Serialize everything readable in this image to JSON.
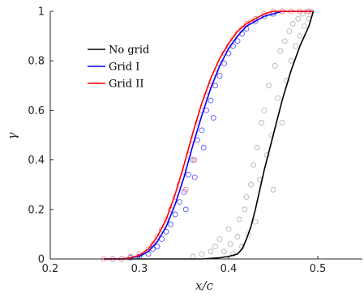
{
  "chart_data": {
    "type": "line",
    "title": "",
    "xlabel": "x/c",
    "ylabel": "γ",
    "xlim": [
      0.2,
      0.55
    ],
    "ylim": [
      0,
      1
    ],
    "xticks": [
      0.2,
      0.3,
      0.4,
      0.5
    ],
    "xtick_labels": [
      "0.2",
      "0.3",
      "0.4",
      "0.5"
    ],
    "yticks": [
      0,
      0.2,
      0.4,
      0.6,
      0.8,
      1
    ],
    "ytick_labels": [
      "0",
      "0.2",
      "0.4",
      "0.6",
      "0.8",
      "1"
    ],
    "grid": false,
    "legend": {
      "placement": "top-left",
      "entries": [
        "No grid",
        "Grid I",
        "Grid II"
      ]
    },
    "series": [
      {
        "name": "No grid",
        "color": "#000000",
        "marker_color": "#b0b0b0",
        "line": {
          "x": [
            0.26,
            0.3,
            0.34,
            0.37,
            0.39,
            0.4,
            0.41,
            0.415,
            0.42,
            0.425,
            0.43,
            0.435,
            0.44,
            0.45,
            0.46,
            0.47,
            0.48,
            0.49,
            0.495
          ],
          "y": [
            0,
            0,
            0,
            0,
            0.005,
            0.01,
            0.02,
            0.04,
            0.08,
            0.13,
            0.2,
            0.28,
            0.36,
            0.5,
            0.64,
            0.76,
            0.86,
            0.94,
            1.0
          ]
        },
        "markers": {
          "x": [
            0.36,
            0.37,
            0.38,
            0.385,
            0.39,
            0.395,
            0.4,
            0.402,
            0.405,
            0.41,
            0.412,
            0.415,
            0.418,
            0.42,
            0.422,
            0.425,
            0.428,
            0.43,
            0.432,
            0.435,
            0.437,
            0.44,
            0.443,
            0.445,
            0.448,
            0.45,
            0.452,
            0.455,
            0.458,
            0.46,
            0.463,
            0.465,
            0.468,
            0.47,
            0.472,
            0.475,
            0.478,
            0.48,
            0.483,
            0.485,
            0.488,
            0.49,
            0.493
          ],
          "y": [
            0.01,
            0.02,
            0.03,
            0.05,
            0.08,
            0.03,
            0.12,
            0.06,
            0.02,
            0.09,
            0.16,
            0.05,
            0.2,
            0.25,
            0.1,
            0.3,
            0.38,
            0.15,
            0.45,
            0.32,
            0.55,
            0.6,
            0.42,
            0.7,
            0.5,
            0.28,
            0.78,
            0.65,
            0.84,
            0.55,
            0.88,
            0.72,
            0.92,
            0.8,
            0.95,
            0.86,
            0.97,
            0.9,
            0.99,
            0.94,
            1.0,
            0.97,
            1.0
          ]
        }
      },
      {
        "name": "Grid I",
        "color": "#0000ff",
        "marker_color": "#4a4aff",
        "line": {
          "x": [
            0.26,
            0.28,
            0.29,
            0.3,
            0.31,
            0.32,
            0.33,
            0.34,
            0.35,
            0.36,
            0.37,
            0.38,
            0.39,
            0.4,
            0.41,
            0.42,
            0.43,
            0.44,
            0.45,
            0.46,
            0.47,
            0.48,
            0.49,
            0.495
          ],
          "y": [
            0,
            0,
            0.005,
            0.01,
            0.03,
            0.07,
            0.13,
            0.22,
            0.33,
            0.46,
            0.58,
            0.69,
            0.78,
            0.85,
            0.9,
            0.94,
            0.96,
            0.98,
            0.99,
            1.0,
            1.0,
            1.0,
            1.0,
            1.0
          ]
        },
        "markers": {
          "x": [
            0.27,
            0.28,
            0.29,
            0.3,
            0.31,
            0.315,
            0.32,
            0.325,
            0.33,
            0.335,
            0.34,
            0.345,
            0.35,
            0.352,
            0.355,
            0.36,
            0.362,
            0.365,
            0.37,
            0.372,
            0.375,
            0.38,
            0.383,
            0.385,
            0.39,
            0.395,
            0.4,
            0.405,
            0.41,
            0.415,
            0.42,
            0.43,
            0.44,
            0.45,
            0.46
          ],
          "y": [
            0,
            0,
            0.005,
            0.01,
            0.02,
            0.04,
            0.05,
            0.08,
            0.11,
            0.14,
            0.18,
            0.23,
            0.27,
            0.2,
            0.34,
            0.4,
            0.33,
            0.48,
            0.52,
            0.45,
            0.6,
            0.64,
            0.57,
            0.7,
            0.74,
            0.79,
            0.83,
            0.86,
            0.88,
            0.91,
            0.93,
            0.96,
            0.98,
            0.99,
            1.0
          ]
        }
      },
      {
        "name": "Grid II",
        "color": "#ff0000",
        "marker_color": "#ff7f7f",
        "line": {
          "x": [
            0.26,
            0.28,
            0.29,
            0.3,
            0.31,
            0.32,
            0.33,
            0.34,
            0.35,
            0.36,
            0.37,
            0.38,
            0.39,
            0.4,
            0.41,
            0.42,
            0.43,
            0.44,
            0.45,
            0.46,
            0.47,
            0.48,
            0.49,
            0.495
          ],
          "y": [
            0,
            0,
            0.005,
            0.015,
            0.04,
            0.09,
            0.16,
            0.26,
            0.38,
            0.51,
            0.63,
            0.73,
            0.81,
            0.87,
            0.92,
            0.95,
            0.97,
            0.99,
            1.0,
            1.0,
            1.0,
            1.0,
            1.0,
            1.0
          ]
        },
        "markers": {
          "x": [
            0.26,
            0.27,
            0.28,
            0.29,
            0.3,
            0.31,
            0.315,
            0.32,
            0.325,
            0.33,
            0.335,
            0.34,
            0.345,
            0.35,
            0.352,
            0.355,
            0.36,
            0.362,
            0.365,
            0.37,
            0.375,
            0.38,
            0.385,
            0.39,
            0.395,
            0.4,
            0.405,
            0.41,
            0.415,
            0.42,
            0.425,
            0.43,
            0.44,
            0.45,
            0.46,
            0.47,
            0.48,
            0.49
          ],
          "y": [
            0,
            0,
            0,
            0.01,
            0.02,
            0.04,
            0.06,
            0.09,
            0.12,
            0.16,
            0.2,
            0.25,
            0.3,
            0.35,
            0.28,
            0.42,
            0.48,
            0.4,
            0.55,
            0.6,
            0.66,
            0.7,
            0.75,
            0.79,
            0.83,
            0.86,
            0.89,
            0.91,
            0.93,
            0.95,
            0.96,
            0.97,
            0.99,
            1.0,
            1.0,
            1.0,
            1.0,
            1.0
          ]
        }
      }
    ]
  }
}
